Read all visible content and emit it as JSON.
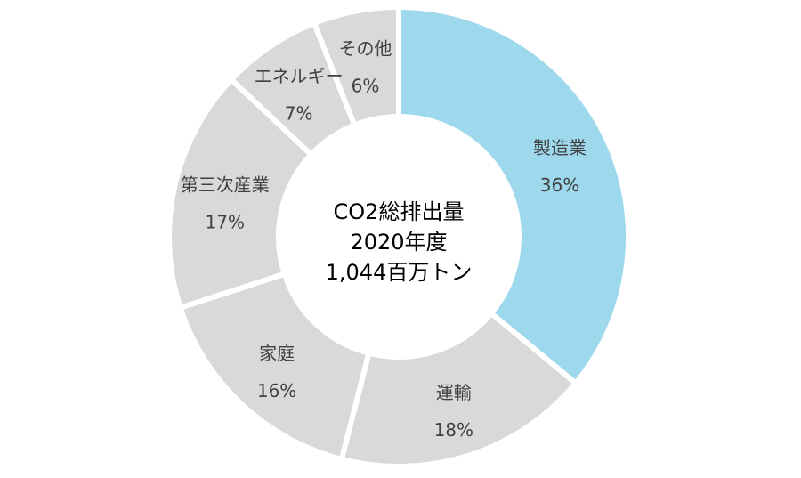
{
  "chart_data": {
    "type": "pie",
    "donut": true,
    "unit": "%",
    "center_text": [
      "CO2総排出量",
      "2020年度",
      "1,044百万トン"
    ],
    "slices": [
      {
        "label": "製造業",
        "value": 36,
        "color": "#9dd8ec"
      },
      {
        "label": "運輸",
        "value": 18,
        "color": "#d9d9d9"
      },
      {
        "label": "家庭",
        "value": 16,
        "color": "#d9d9d9"
      },
      {
        "label": "第三次産業",
        "value": 17,
        "color": "#d9d9d9"
      },
      {
        "label": "エネルギー",
        "value": 7,
        "color": "#d9d9d9"
      },
      {
        "label": "その他",
        "value": 6,
        "color": "#d9d9d9"
      }
    ]
  }
}
